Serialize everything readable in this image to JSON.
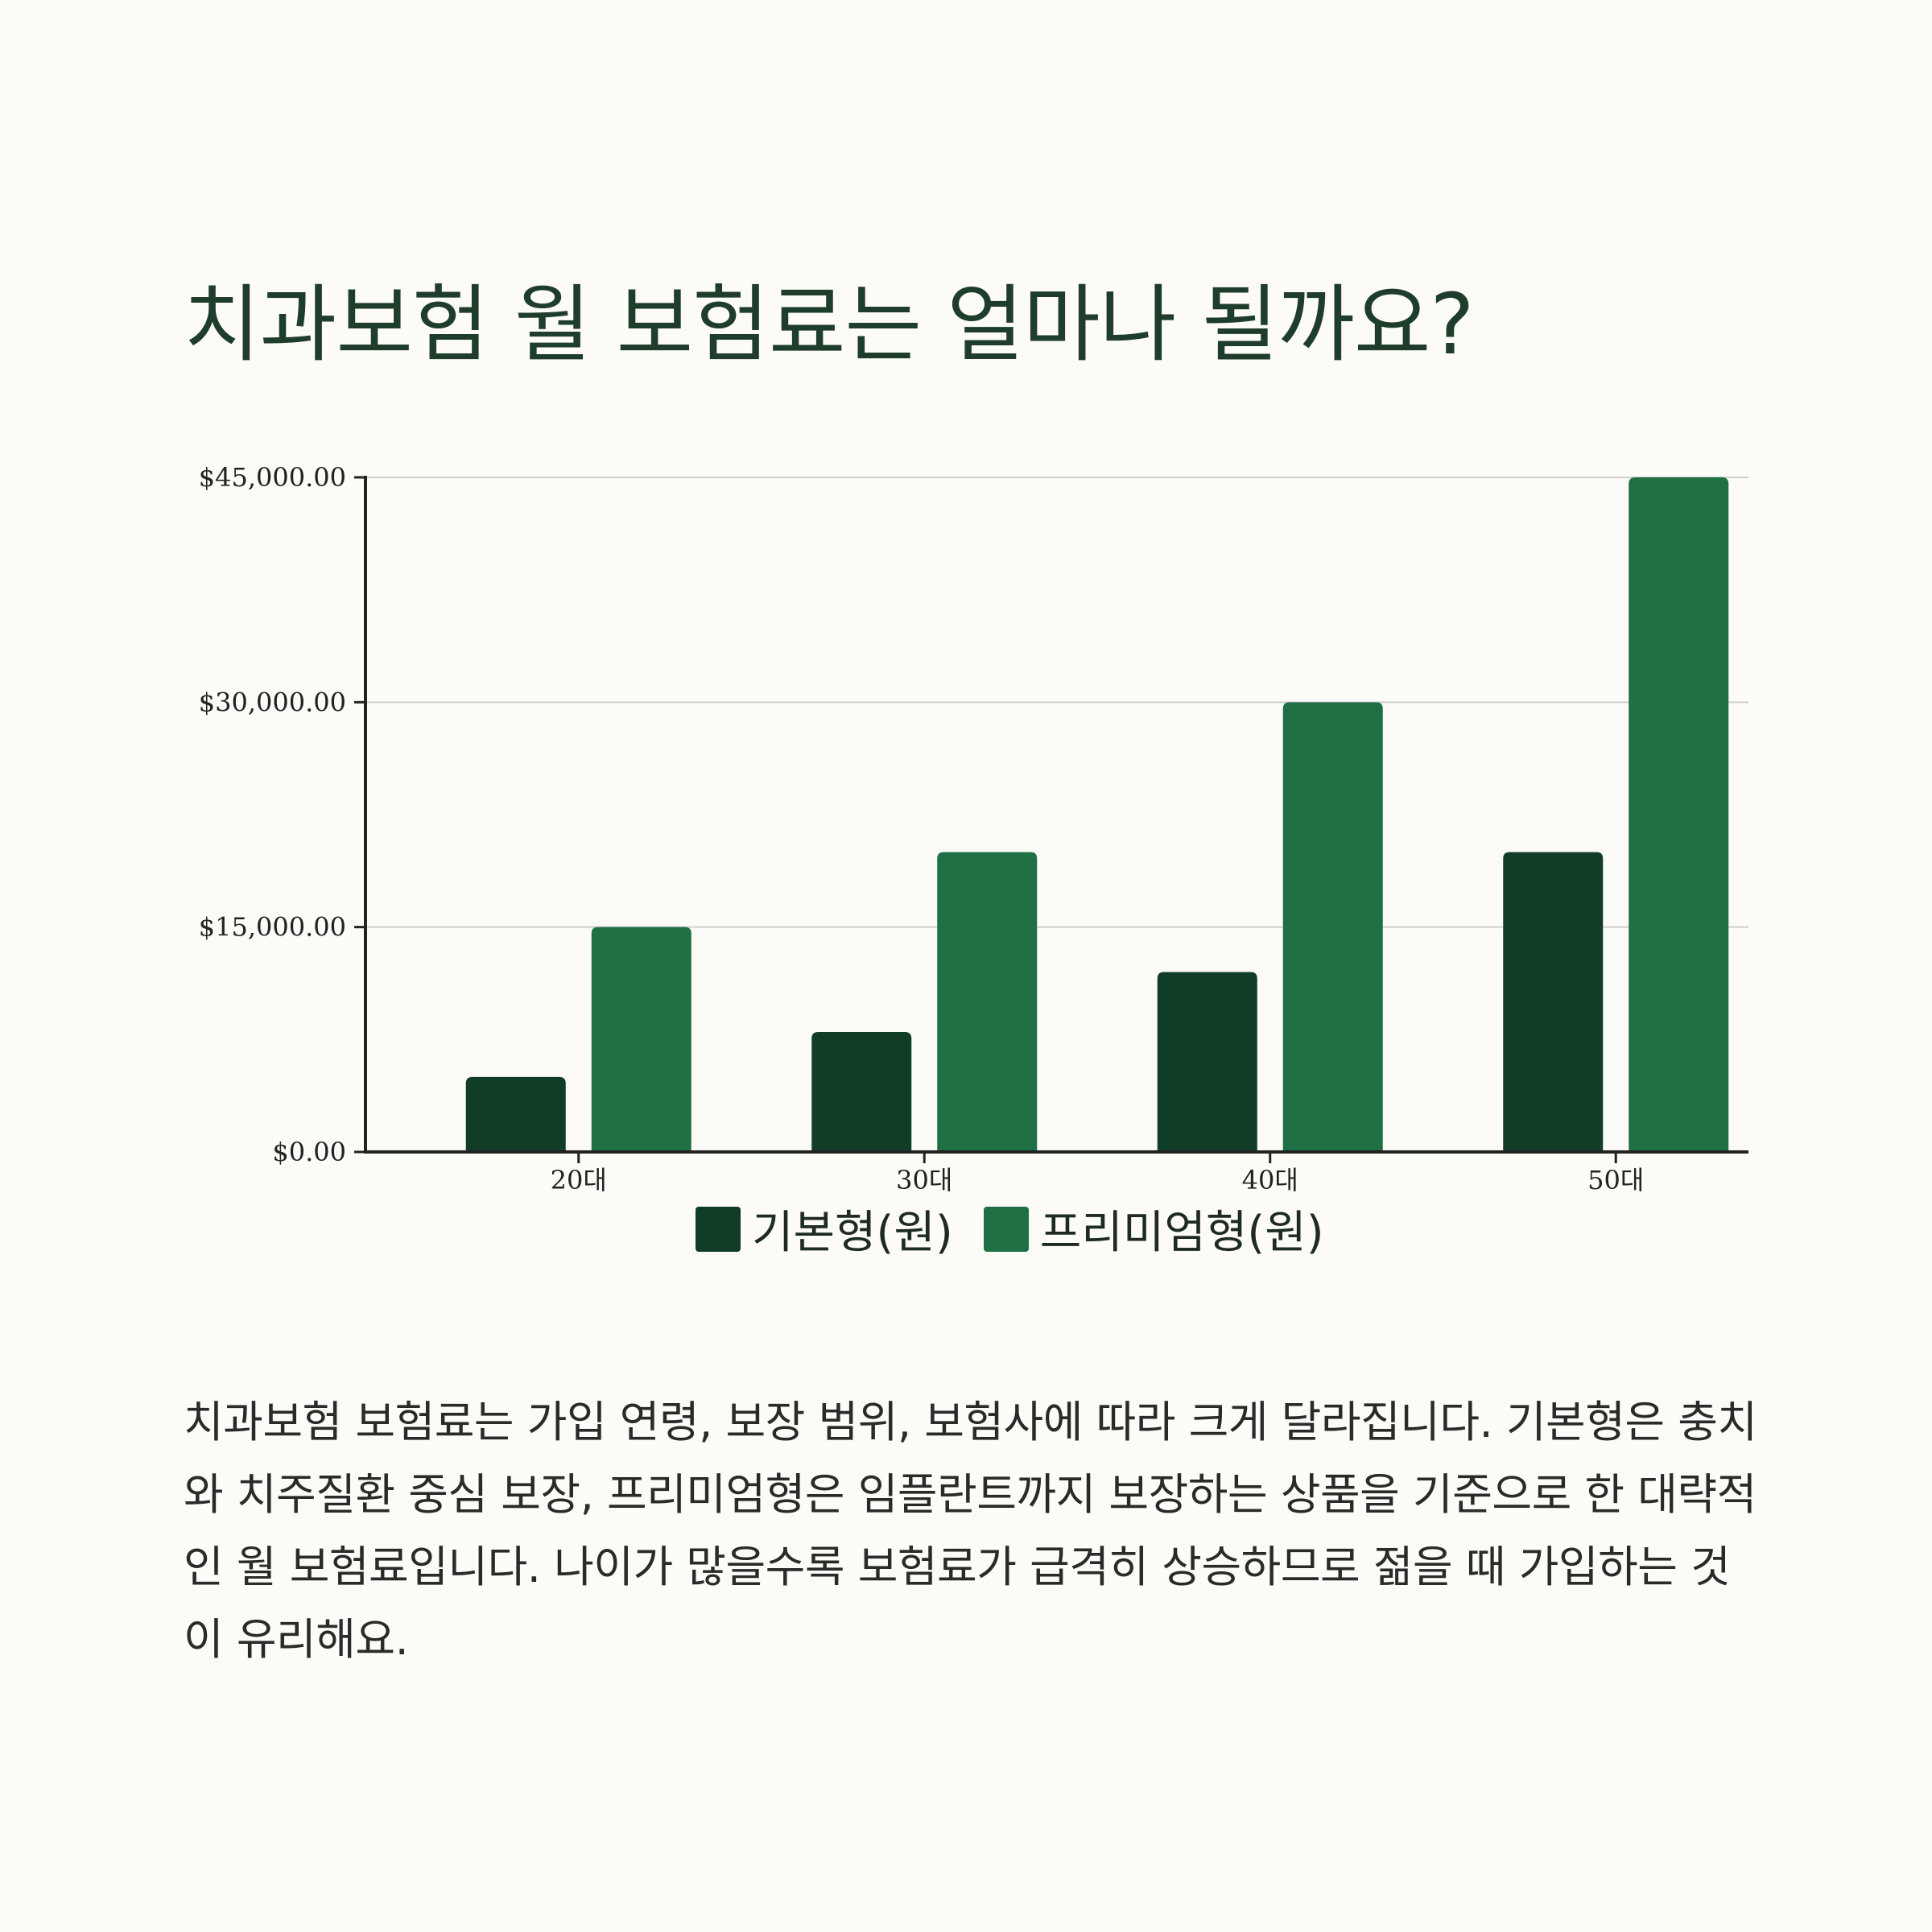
{
  "title": "치과보험 월 보험료는 얼마나 될까요?",
  "description": "치과보험 보험료는 가입 연령, 보장 범위, 보험사에 따라 크게 달라집니다. 기본형은 충치와 치주질환 중심 보장, 프리미엄형은 임플란트까지 보장하는 상품을 기준으로 한 대략적인 월 보험료입니다. 나이가 많을수록 보험료가 급격히 상승하므로 젊을 때 가입하는 것이 유리해요.",
  "chart_data": {
    "type": "bar",
    "categories": [
      "20대",
      "30대",
      "40대",
      "50대"
    ],
    "series": [
      {
        "name": "기본형(원)",
        "values": [
          5000,
          8000,
          12000,
          20000
        ],
        "color": "#103d26"
      },
      {
        "name": "프리미엄형(원)",
        "values": [
          15000,
          20000,
          30000,
          45000
        ],
        "color": "#207045"
      }
    ],
    "ylim": [
      0,
      45000
    ],
    "yticks": [
      0,
      15000,
      30000,
      45000
    ],
    "ytick_labels": [
      "$0.00",
      "$15,000.00",
      "$30,000.00",
      "$45,000.00"
    ],
    "grid": true,
    "legend_position": "bottom-center"
  }
}
